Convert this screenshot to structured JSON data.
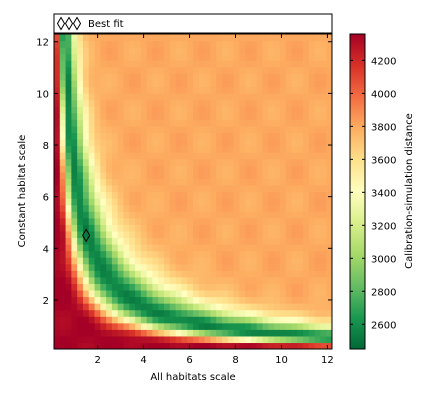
{
  "chart_data": {
    "type": "heatmap",
    "xlabel": "All habitats scale",
    "ylabel": "Constant habitat scale",
    "colorbar_label": "Calibration-simulation distance",
    "xlim": [
      0.1,
      12.2
    ],
    "ylim": [
      0.1,
      12.3
    ],
    "x_ticks": [
      2,
      4,
      6,
      8,
      10,
      12
    ],
    "y_ticks": [
      2,
      4,
      6,
      8,
      10,
      12
    ],
    "color_range": [
      2450,
      4360
    ],
    "colorbar_ticks": [
      2600,
      2800,
      3000,
      3200,
      3400,
      3600,
      3800,
      4000,
      4200
    ],
    "colormap": [
      "#006837",
      "#1a9850",
      "#66bd63",
      "#a6d96a",
      "#d9ef8b",
      "#ffffbf",
      "#fee08b",
      "#fdae61",
      "#f46d43",
      "#d73027",
      "#a50026"
    ],
    "grid": false,
    "legend": {
      "position": "top",
      "entries": [
        {
          "label": "Best fit",
          "marker": "diamond",
          "markers_shown": 3
        }
      ]
    },
    "best_fit": {
      "x": 1.5,
      "y": 4.5
    },
    "surface_description": "distance minimum along hyperbolic valley x*y ~ 7; high (red) near origin, orange at large scales",
    "valley_product": 7.0
  }
}
